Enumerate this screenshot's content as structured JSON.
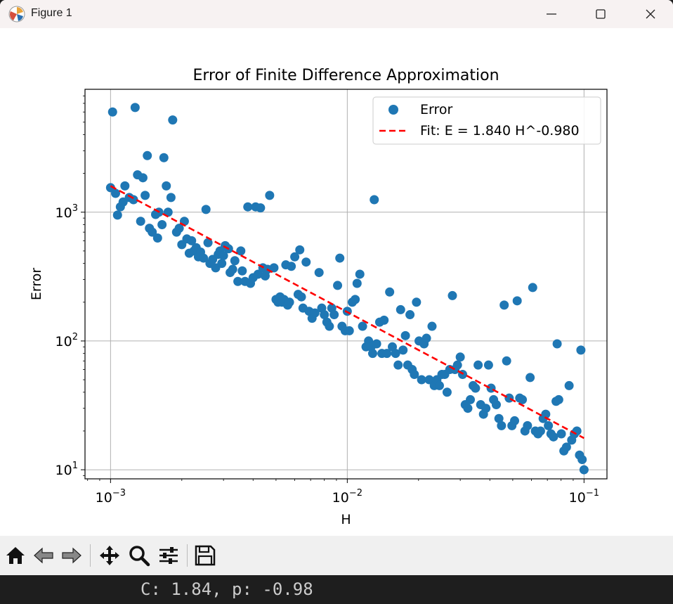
{
  "window": {
    "title": "Figure 1"
  },
  "toolbar": {
    "buttons": [
      {
        "name": "home-button",
        "icon": "home-icon"
      },
      {
        "name": "back-button",
        "icon": "arrow-left-icon"
      },
      {
        "name": "forward-button",
        "icon": "arrow-right-icon"
      },
      {
        "name": "pan-button",
        "icon": "move-icon"
      },
      {
        "name": "zoom-button",
        "icon": "magnifier-icon"
      },
      {
        "name": "configure-subplots-button",
        "icon": "sliders-icon"
      },
      {
        "name": "save-button",
        "icon": "floppy-disk-icon"
      }
    ]
  },
  "console": {
    "text": "C: 1.84, p: -0.98"
  },
  "chart_data": {
    "type": "scatter",
    "title": "Error of Finite Difference Approximation",
    "xlabel": "H",
    "ylabel": "Error",
    "xscale": "log",
    "yscale": "log",
    "xlim": [
      0.00078,
      0.125
    ],
    "ylim": [
      8.5,
      9000
    ],
    "xticks": [
      {
        "base": "10",
        "exp": "−3",
        "value": 0.001
      },
      {
        "base": "10",
        "exp": "−2",
        "value": 0.01
      },
      {
        "base": "10",
        "exp": "−1",
        "value": 0.1
      }
    ],
    "yticks": [
      {
        "base": "10",
        "exp": "1",
        "value": 10
      },
      {
        "base": "10",
        "exp": "2",
        "value": 100
      },
      {
        "base": "10",
        "exp": "3",
        "value": 1000
      }
    ],
    "grid": true,
    "legend": {
      "position": "upper right",
      "entries": [
        "Error",
        "Fit: E = 1.840 H^-0.980"
      ]
    },
    "colors": {
      "scatter": "#1f77b4",
      "fit": "#ff0000"
    },
    "series": [
      {
        "name": "Error",
        "kind": "scatter",
        "points": [
          [
            0.001,
            1550
          ],
          [
            0.00102,
            6000
          ],
          [
            0.00105,
            1400
          ],
          [
            0.00107,
            950
          ],
          [
            0.0011,
            1100
          ],
          [
            0.00113,
            1200
          ],
          [
            0.00115,
            1600
          ],
          [
            0.0012,
            1300
          ],
          [
            0.00125,
            1250
          ],
          [
            0.00127,
            6500
          ],
          [
            0.0013,
            1950
          ],
          [
            0.00134,
            850
          ],
          [
            0.00137,
            1850
          ],
          [
            0.0014,
            1350
          ],
          [
            0.00143,
            2750
          ],
          [
            0.00146,
            750
          ],
          [
            0.0015,
            700
          ],
          [
            0.00155,
            960
          ],
          [
            0.00158,
            630
          ],
          [
            0.0016,
            1000
          ],
          [
            0.00165,
            800
          ],
          [
            0.00168,
            2650
          ],
          [
            0.00172,
            1600
          ],
          [
            0.00175,
            1000
          ],
          [
            0.0018,
            1300
          ],
          [
            0.00183,
            5200
          ],
          [
            0.0019,
            700
          ],
          [
            0.00195,
            750
          ],
          [
            0.002,
            560
          ],
          [
            0.00205,
            850
          ],
          [
            0.0021,
            620
          ],
          [
            0.00215,
            480
          ],
          [
            0.0022,
            600
          ],
          [
            0.00225,
            500
          ],
          [
            0.0023,
            530
          ],
          [
            0.00235,
            450
          ],
          [
            0.0024,
            490
          ],
          [
            0.00247,
            440
          ],
          [
            0.00253,
            1050
          ],
          [
            0.00258,
            580
          ],
          [
            0.00263,
            400
          ],
          [
            0.0027,
            430
          ],
          [
            0.00278,
            370
          ],
          [
            0.00285,
            470
          ],
          [
            0.0029,
            500
          ],
          [
            0.00295,
            400
          ],
          [
            0.003,
            460
          ],
          [
            0.00305,
            550
          ],
          [
            0.00315,
            520
          ],
          [
            0.0032,
            340
          ],
          [
            0.00328,
            360
          ],
          [
            0.00335,
            420
          ],
          [
            0.00345,
            290
          ],
          [
            0.00355,
            500
          ],
          [
            0.0036,
            350
          ],
          [
            0.0037,
            290
          ],
          [
            0.0038,
            1100
          ],
          [
            0.0039,
            280
          ],
          [
            0.004,
            310
          ],
          [
            0.0041,
            1100
          ],
          [
            0.0042,
            330
          ],
          [
            0.0043,
            1080
          ],
          [
            0.0044,
            370
          ],
          [
            0.0045,
            320
          ],
          [
            0.0046,
            360
          ],
          [
            0.0047,
            1350
          ],
          [
            0.0049,
            370
          ],
          [
            0.005,
            210
          ],
          [
            0.0051,
            200
          ],
          [
            0.0052,
            220
          ],
          [
            0.0053,
            200
          ],
          [
            0.0054,
            210
          ],
          [
            0.0055,
            390
          ],
          [
            0.0056,
            190
          ],
          [
            0.0057,
            200
          ],
          [
            0.0058,
            380
          ],
          [
            0.006,
            450
          ],
          [
            0.0062,
            230
          ],
          [
            0.0063,
            510
          ],
          [
            0.0064,
            220
          ],
          [
            0.0065,
            180
          ],
          [
            0.0067,
            410
          ],
          [
            0.0069,
            170
          ],
          [
            0.0071,
            150
          ],
          [
            0.0073,
            165
          ],
          [
            0.0076,
            340
          ],
          [
            0.0078,
            180
          ],
          [
            0.008,
            160
          ],
          [
            0.0082,
            140
          ],
          [
            0.0084,
            130
          ],
          [
            0.0086,
            180
          ],
          [
            0.0088,
            160
          ],
          [
            0.0091,
            270
          ],
          [
            0.0093,
            440
          ],
          [
            0.0095,
            130
          ],
          [
            0.0098,
            120
          ],
          [
            0.01,
            170
          ],
          [
            0.0102,
            120
          ],
          [
            0.0105,
            200
          ],
          [
            0.0108,
            210
          ],
          [
            0.011,
            280
          ],
          [
            0.0113,
            330
          ],
          [
            0.0116,
            130
          ],
          [
            0.012,
            90
          ],
          [
            0.0123,
            100
          ],
          [
            0.0126,
            90
          ],
          [
            0.0128,
            80
          ],
          [
            0.013,
            1250
          ],
          [
            0.0133,
            95
          ],
          [
            0.0137,
            140
          ],
          [
            0.014,
            80
          ],
          [
            0.0143,
            145
          ],
          [
            0.0147,
            80
          ],
          [
            0.0151,
            240
          ],
          [
            0.0155,
            90
          ],
          [
            0.016,
            80
          ],
          [
            0.0164,
            65
          ],
          [
            0.0168,
            175
          ],
          [
            0.0172,
            85
          ],
          [
            0.0176,
            110
          ],
          [
            0.018,
            65
          ],
          [
            0.0184,
            160
          ],
          [
            0.0188,
            60
          ],
          [
            0.0192,
            55
          ],
          [
            0.0196,
            200
          ],
          [
            0.0201,
            100
          ],
          [
            0.0206,
            50
          ],
          [
            0.0211,
            95
          ],
          [
            0.0216,
            105
          ],
          [
            0.0222,
            50
          ],
          [
            0.0228,
            130
          ],
          [
            0.0233,
            45
          ],
          [
            0.0239,
            50
          ],
          [
            0.0245,
            45
          ],
          [
            0.0251,
            55
          ],
          [
            0.0258,
            55
          ],
          [
            0.0264,
            40
          ],
          [
            0.0271,
            60
          ],
          [
            0.0278,
            225
          ],
          [
            0.0285,
            60
          ],
          [
            0.0292,
            65
          ],
          [
            0.03,
            75
          ],
          [
            0.0307,
            55
          ],
          [
            0.0315,
            32
          ],
          [
            0.0323,
            30
          ],
          [
            0.0331,
            35
          ],
          [
            0.034,
            45
          ],
          [
            0.0348,
            43
          ],
          [
            0.0357,
            65
          ],
          [
            0.0366,
            32
          ],
          [
            0.0376,
            27
          ],
          [
            0.0385,
            30
          ],
          [
            0.0395,
            65
          ],
          [
            0.0405,
            43
          ],
          [
            0.0415,
            35
          ],
          [
            0.0426,
            32
          ],
          [
            0.0437,
            25
          ],
          [
            0.0448,
            22
          ],
          [
            0.046,
            190
          ],
          [
            0.0471,
            70
          ],
          [
            0.0483,
            36
          ],
          [
            0.0496,
            22
          ],
          [
            0.0509,
            24
          ],
          [
            0.0522,
            205
          ],
          [
            0.0535,
            36
          ],
          [
            0.0549,
            35
          ],
          [
            0.0563,
            20
          ],
          [
            0.0577,
            22
          ],
          [
            0.0592,
            52
          ],
          [
            0.0607,
            260
          ],
          [
            0.0623,
            20
          ],
          [
            0.0639,
            19
          ],
          [
            0.0655,
            20
          ],
          [
            0.0672,
            25
          ],
          [
            0.0689,
            27
          ],
          [
            0.0707,
            22
          ],
          [
            0.0725,
            19
          ],
          [
            0.0743,
            18
          ],
          [
            0.0762,
            34
          ],
          [
            0.0782,
            35
          ],
          [
            0.0802,
            19
          ],
          [
            0.0822,
            14
          ],
          [
            0.0843,
            15
          ],
          [
            0.0865,
            45
          ],
          [
            0.0887,
            17
          ],
          [
            0.091,
            19
          ],
          [
            0.0933,
            20
          ],
          [
            0.0957,
            13
          ],
          [
            0.0982,
            12
          ],
          [
            0.077,
            95
          ],
          [
            0.097,
            85
          ],
          [
            0.1,
            10
          ]
        ]
      },
      {
        "name": "Fit: E = 1.840 H^-0.980",
        "kind": "line",
        "style": "dashed",
        "x": [
          0.001,
          0.1
        ],
        "y": [
          1596,
          17.6
        ]
      }
    ]
  }
}
